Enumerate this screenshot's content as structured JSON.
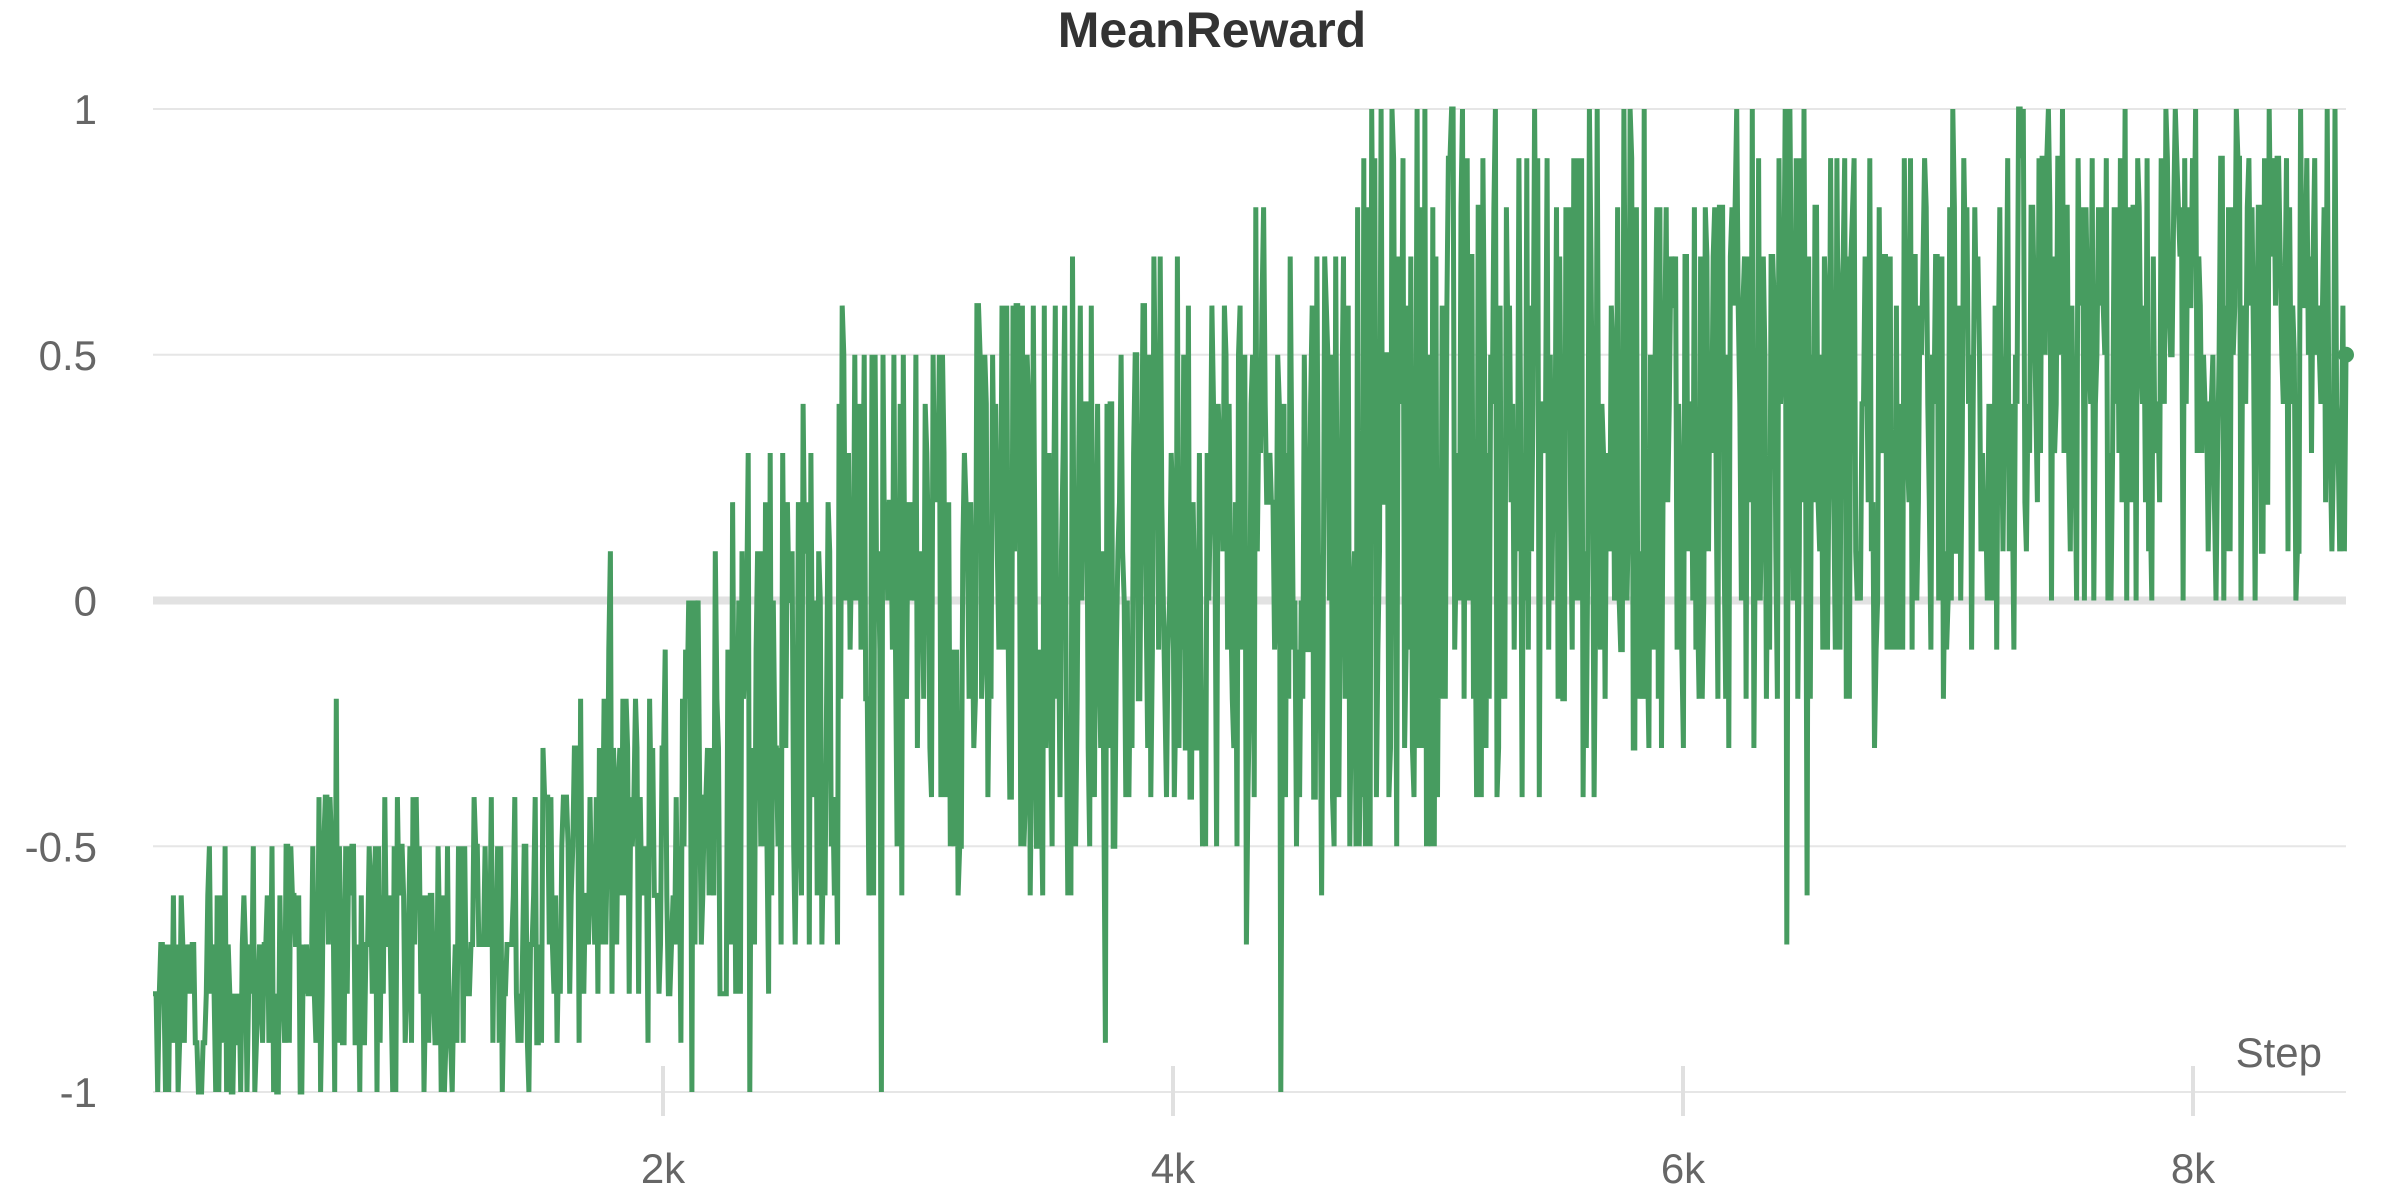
{
  "chart_data": {
    "type": "line",
    "title": "MeanReward",
    "xlabel": "Step",
    "ylabel": "",
    "xlim": [
      0,
      8600
    ],
    "ylim": [
      -1,
      1
    ],
    "x_ticks": [
      {
        "value": 2000,
        "label": "2k"
      },
      {
        "value": 4000,
        "label": "4k"
      },
      {
        "value": 6000,
        "label": "6k"
      },
      {
        "value": 8000,
        "label": "8k"
      }
    ],
    "y_ticks": [
      {
        "value": 1,
        "label": "1"
      },
      {
        "value": 0.5,
        "label": "0.5"
      },
      {
        "value": 0,
        "label": "0"
      },
      {
        "value": -0.5,
        "label": "-0.5"
      },
      {
        "value": -1,
        "label": "-1"
      }
    ],
    "grid": true,
    "legend": "none",
    "series": [
      {
        "color": "#479c60",
        "x": [
          0,
          250,
          500,
          750,
          1000,
          1250,
          1500,
          1750,
          2000,
          2250,
          2500,
          2750,
          3000,
          3250,
          3500,
          3750,
          4000,
          4250,
          4500,
          4750,
          5000,
          5250,
          5500,
          5750,
          6000,
          6250,
          6500,
          6750,
          7000,
          7250,
          7500,
          7750,
          8000,
          8250,
          8500,
          8600
        ],
        "y": [
          -0.85,
          -0.8,
          -0.75,
          -0.7,
          -0.7,
          -0.7,
          -0.65,
          -0.5,
          -0.5,
          -0.3,
          -0.15,
          -0.05,
          0.0,
          0.02,
          0.05,
          0.08,
          0.1,
          0.12,
          0.15,
          0.2,
          0.28,
          0.3,
          0.3,
          0.32,
          0.33,
          0.35,
          0.38,
          0.4,
          0.4,
          0.42,
          0.45,
          0.45,
          0.47,
          0.48,
          0.5,
          0.5
        ],
        "spread": [
          0.15,
          0.18,
          0.2,
          0.25,
          0.22,
          0.2,
          0.22,
          0.25,
          0.3,
          0.4,
          0.45,
          0.45,
          0.4,
          0.45,
          0.45,
          0.45,
          0.45,
          0.45,
          0.5,
          0.55,
          0.55,
          0.5,
          0.5,
          0.5,
          0.45,
          0.45,
          0.45,
          0.4,
          0.4,
          0.4,
          0.38,
          0.38,
          0.35,
          0.35,
          0.35,
          0.3
        ],
        "last_value": 0.5
      }
    ]
  }
}
